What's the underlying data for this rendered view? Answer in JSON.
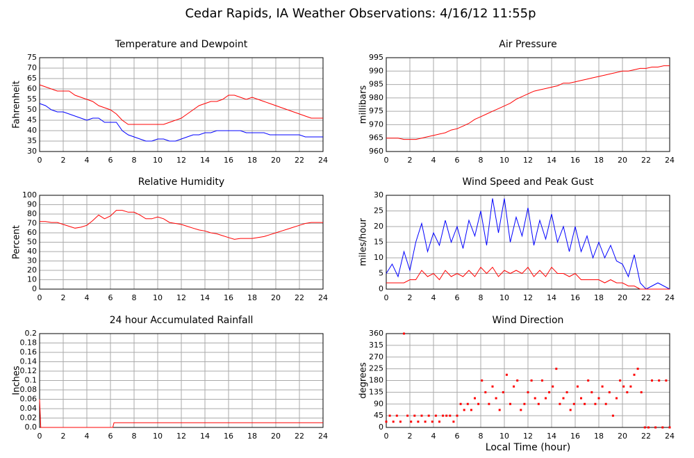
{
  "title": "Cedar Rapids, IA Weather Observations: 4/16/12 11:55p",
  "chart_data": [
    {
      "type": "line",
      "title": "Temperature and Dewpoint",
      "ylabel": "Fahrenheit",
      "grid": true,
      "xlim": [
        0,
        24
      ],
      "xticks": [
        0,
        2,
        4,
        6,
        8,
        10,
        12,
        14,
        16,
        18,
        20,
        22,
        24
      ],
      "ylim": [
        30,
        75
      ],
      "yticks": [
        30,
        35,
        40,
        45,
        50,
        55,
        60,
        65,
        70,
        75
      ],
      "x": [
        0,
        0.5,
        1,
        1.5,
        2,
        2.5,
        3,
        3.5,
        4,
        4.5,
        5,
        5.5,
        6,
        6.5,
        7,
        7.5,
        8,
        8.5,
        9,
        9.5,
        10,
        10.5,
        11,
        11.5,
        12,
        12.5,
        13,
        13.5,
        14,
        14.5,
        15,
        15.5,
        16,
        16.5,
        17,
        17.5,
        18,
        18.5,
        19,
        19.5,
        20,
        20.5,
        21,
        21.5,
        22,
        22.5,
        23,
        23.5,
        24
      ],
      "series": [
        {
          "color": "#ff0000",
          "values": [
            62,
            61,
            60,
            59,
            59,
            59,
            57,
            56,
            55,
            54,
            52,
            51,
            50,
            48,
            45,
            43,
            43,
            43,
            43,
            43,
            43,
            43,
            44,
            45,
            46,
            48,
            50,
            52,
            53,
            54,
            54,
            55,
            57,
            57,
            56,
            55,
            56,
            55,
            54,
            53,
            52,
            51,
            50,
            49,
            48,
            47,
            46,
            46,
            46
          ]
        },
        {
          "color": "#0000ff",
          "values": [
            53,
            52,
            50,
            49,
            49,
            48,
            47,
            46,
            45,
            46,
            46,
            44,
            44,
            44,
            40,
            38,
            37,
            36,
            35,
            35,
            36,
            36,
            35,
            35,
            36,
            37,
            38,
            38,
            39,
            39,
            40,
            40,
            40,
            40,
            40,
            39,
            39,
            39,
            39,
            38,
            38,
            38,
            38,
            38,
            38,
            37,
            37,
            37,
            37
          ]
        }
      ]
    },
    {
      "type": "line",
      "title": "Air Pressure",
      "ylabel": "millibars",
      "grid": true,
      "xlim": [
        0,
        24
      ],
      "xticks": [
        0,
        2,
        4,
        6,
        8,
        10,
        12,
        14,
        16,
        18,
        20,
        22,
        24
      ],
      "ylim": [
        960,
        995
      ],
      "yticks": [
        960,
        965,
        970,
        975,
        980,
        985,
        990,
        995
      ],
      "x": [
        0,
        0.5,
        1,
        1.5,
        2,
        2.5,
        3,
        3.5,
        4,
        4.5,
        5,
        5.5,
        6,
        6.5,
        7,
        7.5,
        8,
        8.5,
        9,
        9.5,
        10,
        10.5,
        11,
        11.5,
        12,
        12.5,
        13,
        13.5,
        14,
        14.5,
        15,
        15.5,
        16,
        16.5,
        17,
        17.5,
        18,
        18.5,
        19,
        19.5,
        20,
        20.5,
        21,
        21.5,
        22,
        22.5,
        23,
        23.5,
        24
      ],
      "series": [
        {
          "color": "#ff0000",
          "values": [
            965,
            965,
            965,
            964.5,
            964.5,
            964.5,
            965,
            965.5,
            966,
            966.5,
            967,
            968,
            968.5,
            969.5,
            970.5,
            972,
            973,
            974,
            975,
            976,
            977,
            978,
            979.5,
            980.5,
            981.5,
            982.5,
            983,
            983.5,
            984,
            984.5,
            985.5,
            985.5,
            986,
            986.5,
            987,
            987.5,
            988,
            988.5,
            989,
            989.5,
            990,
            990,
            990.5,
            991,
            991,
            991.5,
            991.5,
            992,
            992
          ]
        }
      ]
    },
    {
      "type": "line",
      "title": "Relative Humidity",
      "ylabel": "Percent",
      "grid": true,
      "xlim": [
        0,
        24
      ],
      "xticks": [
        0,
        2,
        4,
        6,
        8,
        10,
        12,
        14,
        16,
        18,
        20,
        22,
        24
      ],
      "ylim": [
        0,
        100
      ],
      "yticks": [
        0,
        10,
        20,
        30,
        40,
        50,
        60,
        70,
        80,
        90,
        100
      ],
      "x": [
        0,
        0.5,
        1,
        1.5,
        2,
        2.5,
        3,
        3.5,
        4,
        4.5,
        5,
        5.5,
        6,
        6.5,
        7,
        7.5,
        8,
        8.5,
        9,
        9.5,
        10,
        10.5,
        11,
        11.5,
        12,
        12.5,
        13,
        13.5,
        14,
        14.5,
        15,
        15.5,
        16,
        16.5,
        17,
        17.5,
        18,
        18.5,
        19,
        19.5,
        20,
        20.5,
        21,
        21.5,
        22,
        22.5,
        23,
        23.5,
        24
      ],
      "series": [
        {
          "color": "#ff0000",
          "values": [
            72,
            72,
            71,
            71,
            69,
            67,
            65,
            66,
            68,
            73,
            79,
            75,
            78,
            84,
            84,
            82,
            82,
            79,
            75,
            75,
            77,
            75,
            71,
            70,
            69,
            67,
            65,
            63,
            62,
            60,
            59,
            57,
            55,
            53,
            54,
            54,
            54,
            55,
            56,
            58,
            60,
            62,
            64,
            66,
            68,
            70,
            71,
            71,
            71
          ]
        }
      ]
    },
    {
      "type": "line",
      "title": "Wind Speed and Peak Gust",
      "ylabel": "miles/hour",
      "grid": true,
      "xlim": [
        0,
        24
      ],
      "xticks": [
        0,
        2,
        4,
        6,
        8,
        10,
        12,
        14,
        16,
        18,
        20,
        22,
        24
      ],
      "ylim": [
        0,
        30
      ],
      "yticks": [
        0,
        5,
        10,
        15,
        20,
        25,
        30
      ],
      "x": [
        0,
        0.5,
        1,
        1.5,
        2,
        2.5,
        3,
        3.5,
        4,
        4.5,
        5,
        5.5,
        6,
        6.5,
        7,
        7.5,
        8,
        8.5,
        9,
        9.5,
        10,
        10.5,
        11,
        11.5,
        12,
        12.5,
        13,
        13.5,
        14,
        14.5,
        15,
        15.5,
        16,
        16.5,
        17,
        17.5,
        18,
        18.5,
        19,
        19.5,
        20,
        20.5,
        21,
        21.5,
        22,
        22.5,
        23,
        23.5,
        24
      ],
      "series": [
        {
          "color": "#0000ff",
          "values": [
            5,
            8,
            4,
            12,
            6,
            15,
            21,
            12,
            18,
            14,
            22,
            15,
            20,
            13,
            22,
            17,
            25,
            14,
            29,
            18,
            29,
            15,
            23,
            17,
            26,
            14,
            22,
            16,
            24,
            15,
            20,
            12,
            20,
            12,
            17,
            10,
            15,
            10,
            14,
            9,
            8,
            4,
            11,
            2,
            0,
            1,
            2,
            1,
            0
          ]
        },
        {
          "color": "#ff0000",
          "values": [
            2,
            2,
            2,
            2,
            3,
            3,
            6,
            4,
            5,
            3,
            6,
            4,
            5,
            4,
            6,
            4,
            7,
            5,
            7,
            4,
            6,
            5,
            6,
            5,
            7,
            4,
            6,
            4,
            7,
            5,
            5,
            4,
            5,
            3,
            3,
            3,
            3,
            2,
            3,
            2,
            2,
            1,
            1,
            0,
            0,
            0,
            0,
            0,
            0
          ]
        }
      ]
    },
    {
      "type": "line",
      "title": "24 hour Accumulated Rainfall",
      "ylabel": "Inches",
      "grid": true,
      "xlim": [
        0,
        24
      ],
      "xticks": [
        0,
        2,
        4,
        6,
        8,
        10,
        12,
        14,
        16,
        18,
        20,
        22,
        24
      ],
      "ylim": [
        0,
        0.2
      ],
      "yticks": [
        {
          "value": 0,
          "label": "0.0"
        },
        0.02,
        0.04,
        0.06,
        0.08,
        0.1,
        0.12,
        0.14,
        0.16,
        0.18,
        0.2
      ],
      "x": [
        0,
        0.1,
        6.2,
        6.3,
        24
      ],
      "series": [
        {
          "color": "#ff0000",
          "values": [
            0.06,
            0,
            0,
            0.01,
            0.01
          ]
        }
      ]
    },
    {
      "type": "scatter",
      "title": "Wind Direction",
      "ylabel": "degrees",
      "xlabel": "Local Time (hour)",
      "grid": true,
      "xlim": [
        0,
        24
      ],
      "xticks": [
        0,
        2,
        4,
        6,
        8,
        10,
        12,
        14,
        16,
        18,
        20,
        22,
        24
      ],
      "ylim": [
        0,
        360
      ],
      "yticks": [
        0,
        45,
        90,
        135,
        180,
        225,
        270,
        315,
        360
      ],
      "x": [
        0,
        0.3,
        0.6,
        0.9,
        1.2,
        1.5,
        1.8,
        2.1,
        2.4,
        2.7,
        3,
        3.3,
        3.6,
        3.9,
        4.2,
        4.5,
        4.8,
        5.1,
        5.4,
        5.7,
        6,
        6.3,
        6.6,
        6.9,
        7.2,
        7.5,
        7.8,
        8.1,
        8.4,
        8.7,
        9,
        9.3,
        9.6,
        9.9,
        10.2,
        10.5,
        10.8,
        11.1,
        11.4,
        11.7,
        12,
        12.3,
        12.6,
        12.9,
        13.2,
        13.5,
        13.8,
        14.1,
        14.4,
        14.7,
        15,
        15.3,
        15.6,
        15.9,
        16.2,
        16.5,
        16.8,
        17.1,
        17.4,
        17.7,
        18,
        18.3,
        18.6,
        18.9,
        19.2,
        19.5,
        19.8,
        20.1,
        20.4,
        20.7,
        21,
        21.3,
        21.6,
        21.9,
        22.2,
        22.5,
        22.8,
        23.1,
        23.4,
        23.7,
        24
      ],
      "series": [
        {
          "color": "#ff0000",
          "values": [
            22,
            45,
            22,
            45,
            22,
            360,
            45,
            22,
            45,
            22,
            45,
            22,
            45,
            22,
            45,
            22,
            45,
            45,
            45,
            22,
            45,
            90,
            67,
            90,
            67,
            112,
            90,
            180,
            135,
            90,
            157,
            112,
            67,
            135,
            202,
            90,
            157,
            180,
            67,
            90,
            135,
            180,
            112,
            90,
            180,
            112,
            135,
            157,
            225,
            90,
            112,
            135,
            67,
            90,
            157,
            112,
            90,
            180,
            135,
            90,
            112,
            157,
            90,
            135,
            45,
            112,
            180,
            157,
            135,
            157,
            202,
            225,
            135,
            0,
            0,
            180,
            0,
            180,
            0,
            180,
            0
          ]
        }
      ]
    }
  ]
}
